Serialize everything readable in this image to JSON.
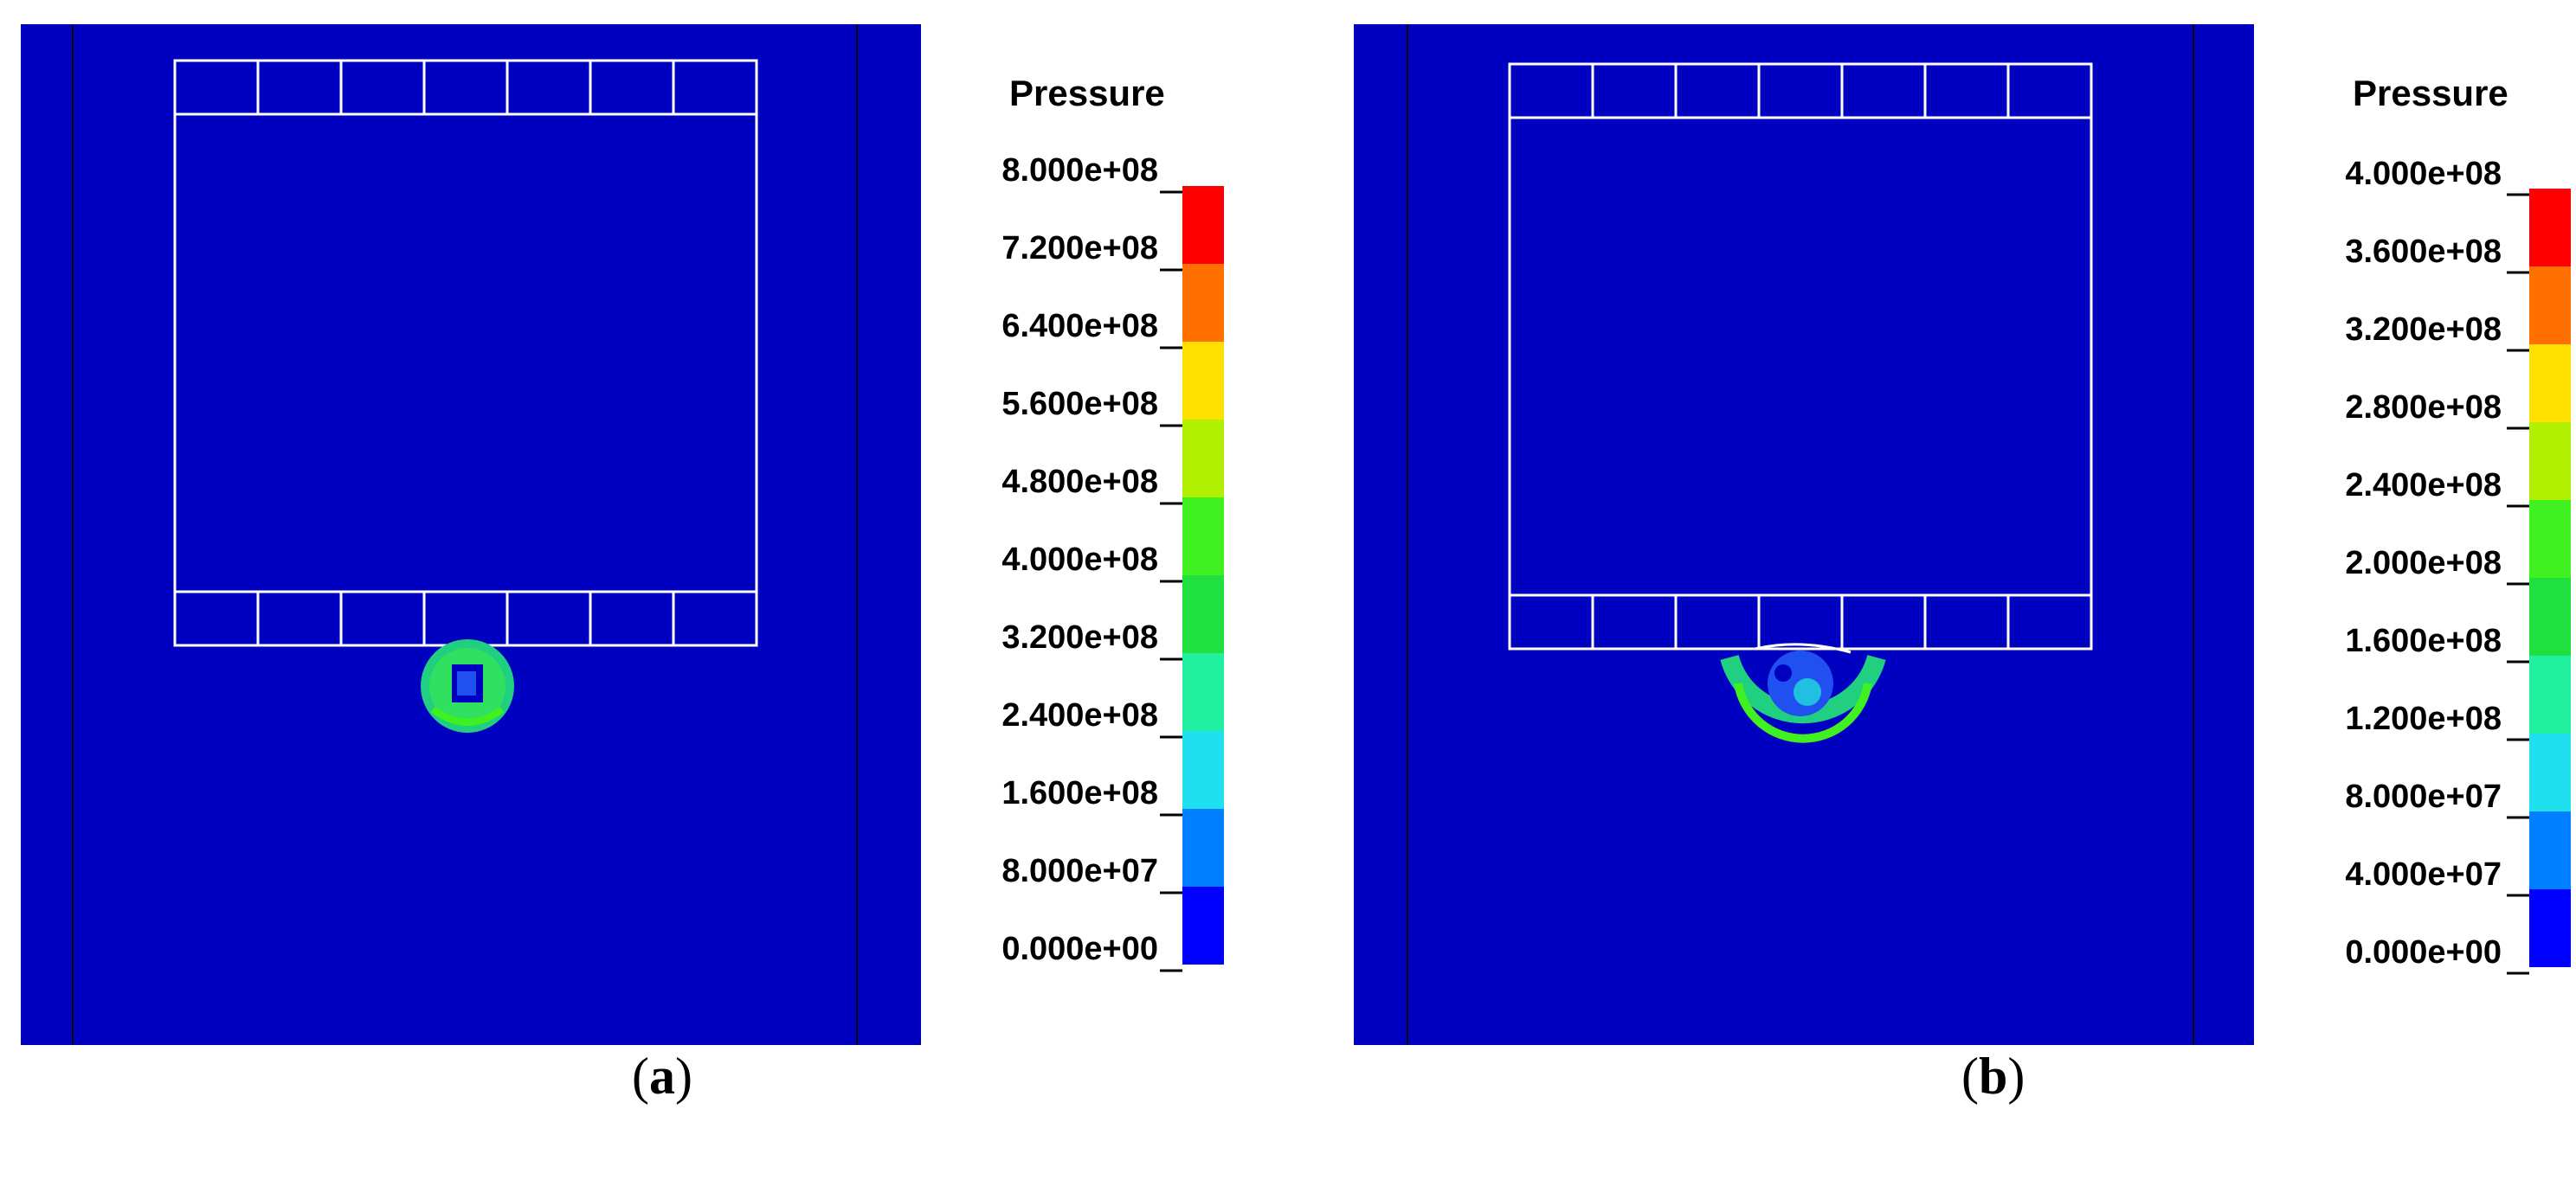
{
  "panels": [
    {
      "id": "a",
      "caption_letter": "a",
      "legend": {
        "title": "Pressure",
        "levels": [
          "8.000e+08",
          "7.200e+08",
          "6.400e+08",
          "5.600e+08",
          "4.800e+08",
          "4.000e+08",
          "3.200e+08",
          "2.400e+08",
          "1.600e+08",
          "8.000e+07",
          "0.000e+00"
        ]
      }
    },
    {
      "id": "b",
      "caption_letter": "b",
      "legend": {
        "title": "Pressure",
        "levels": [
          "4.000e+08",
          "3.600e+08",
          "3.200e+08",
          "2.800e+08",
          "2.400e+08",
          "2.000e+08",
          "1.600e+08",
          "1.200e+08",
          "8.000e+07",
          "4.000e+07",
          "0.000e+00"
        ]
      }
    }
  ],
  "colors": {
    "background_field": "#0000c0",
    "scale": [
      "#ff0000",
      "#ff7000",
      "#ffe000",
      "#b0f000",
      "#40f020",
      "#20e040",
      "#20f0a0",
      "#20e0f0",
      "#0080ff",
      "#0000ff"
    ]
  }
}
